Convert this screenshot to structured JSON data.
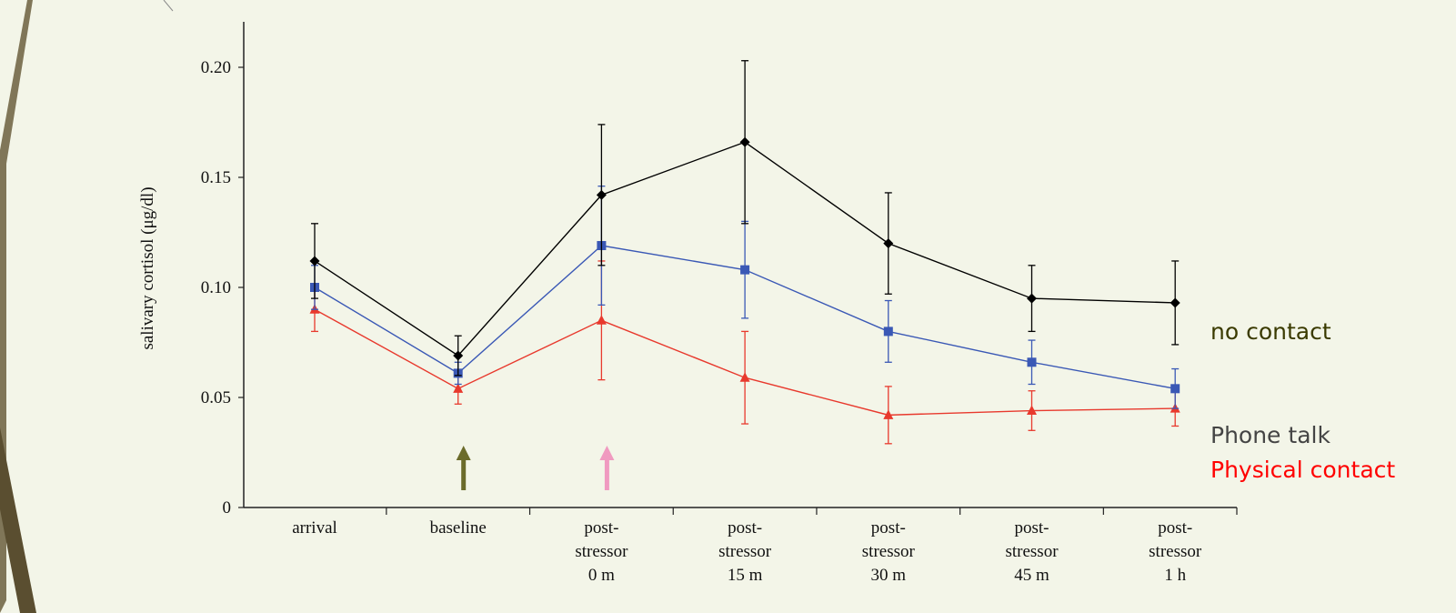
{
  "chart_data": {
    "type": "line",
    "ylabel": "salivary cortisol (μg/dl)",
    "ylim": [
      0,
      0.22
    ],
    "yticks": [
      {
        "value": 0,
        "label": "0"
      },
      {
        "value": 0.05,
        "label": "0.05"
      },
      {
        "value": 0.1,
        "label": "0.10"
      },
      {
        "value": 0.15,
        "label": "0.15"
      },
      {
        "value": 0.2,
        "label": "0.20"
      }
    ],
    "categories": [
      [
        "arrival"
      ],
      [
        "baseline"
      ],
      [
        "post-",
        "stressor",
        "0 m"
      ],
      [
        "post-",
        "stressor",
        "15 m"
      ],
      [
        "post-",
        "stressor",
        "30 m"
      ],
      [
        "post-",
        "stressor",
        "45 m"
      ],
      [
        "post-",
        "stressor",
        "1 h"
      ]
    ],
    "series": [
      {
        "name": "no contact",
        "color": "#000000",
        "marker": "diamond",
        "values": [
          0.112,
          0.069,
          0.142,
          0.166,
          0.12,
          0.095,
          0.093
        ],
        "errors": [
          0.017,
          0.009,
          0.032,
          0.037,
          0.023,
          0.015,
          0.019
        ]
      },
      {
        "name": "Phone talk",
        "color": "#3a58b5",
        "marker": "square",
        "values": [
          0.1,
          0.061,
          0.119,
          0.108,
          0.08,
          0.066,
          0.054
        ],
        "errors": [
          0.01,
          0.005,
          0.027,
          0.022,
          0.014,
          0.01,
          0.009
        ]
      },
      {
        "name": "Physical contact",
        "color": "#e8392d",
        "marker": "triangle",
        "values": [
          0.09,
          0.054,
          0.085,
          0.059,
          0.042,
          0.044,
          0.045
        ],
        "errors": [
          0.01,
          0.007,
          0.027,
          0.021,
          0.013,
          0.009,
          0.008
        ]
      }
    ],
    "arrows": [
      {
        "category_index": 1,
        "color": "#6b6b2a"
      },
      {
        "category_index": 2,
        "color": "#f09ac0"
      }
    ],
    "legend": {
      "placement": "right",
      "entries": [
        {
          "text": "no contact",
          "color": "#3a3a00"
        },
        {
          "text": "Phone talk",
          "color": "#444444"
        },
        {
          "text": "Physical contact",
          "color": "#ff0000"
        }
      ]
    }
  }
}
